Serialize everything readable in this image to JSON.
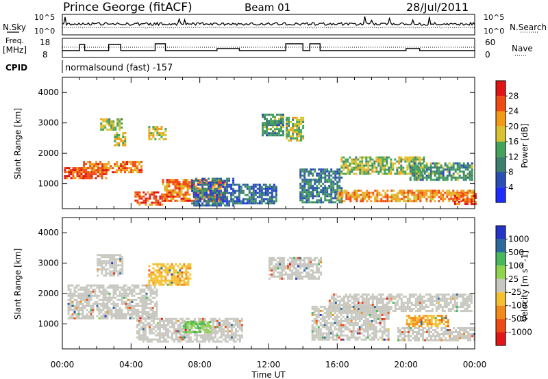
{
  "header": {
    "station": "Prince George (fitACF)",
    "beam": "Beam 01",
    "date": "28/Jul/2011"
  },
  "noise_panel": {
    "left_label": "N.Sky",
    "right_label": "N.Search",
    "ticks_left": [
      "10^5",
      "10^0"
    ],
    "ticks_right": [
      "10^5",
      "10^0"
    ]
  },
  "freq_panel": {
    "left_label_1": "Freq.",
    "left_label_2": "[MHz]",
    "right_label": "Nave",
    "ticks_left": [
      "18",
      "8"
    ],
    "ticks_right": [
      "60",
      "0"
    ]
  },
  "cpid": {
    "label": "CPID",
    "value": "normalsound (fast) -157"
  },
  "x_axis": {
    "label": "Time UT",
    "ticks": [
      "00:00",
      "04:00",
      "08:00",
      "12:00",
      "16:00",
      "20:00",
      "00:00"
    ]
  },
  "y_axis": {
    "label": "Slant Range [km]",
    "ticks": [
      "1000",
      "2000",
      "3000",
      "4000"
    ]
  },
  "power_colorbar": {
    "label": "Power [dB]",
    "ticks": [
      "4",
      "8",
      "12",
      "16",
      "20",
      "24",
      "28"
    ],
    "colors": [
      "#1f2cff",
      "#2a4fb4",
      "#3c7f6e",
      "#43a35a",
      "#d8c230",
      "#f29a18",
      "#ee4a12",
      "#e01414"
    ]
  },
  "velocity_colorbar": {
    "label": "Velocity [m s^-1]",
    "ticks": [
      "1000",
      "500",
      "100",
      "25",
      "-25",
      "-100",
      "-500",
      "-1000"
    ],
    "colors": [
      "#2433c8",
      "#2a6a9c",
      "#48b85c",
      "#8fd44c",
      "#c8c8c0",
      "#f2c030",
      "#f28a1a",
      "#ee4a14",
      "#e21616"
    ]
  },
  "chart_data": {
    "type": "heatmap",
    "x_range_hours": [
      0,
      24
    ],
    "y_range_km": [
      180,
      4500
    ],
    "power_regions": [
      {
        "t0": 0.1,
        "t1": 2.6,
        "r0": 1150,
        "r1": 1550,
        "value": 26
      },
      {
        "t0": 1.2,
        "t1": 4.6,
        "r0": 1400,
        "r1": 1750,
        "value": 24
      },
      {
        "t0": 3.0,
        "t1": 3.6,
        "r0": 2250,
        "r1": 2700,
        "value": 18
      },
      {
        "t0": 2.2,
        "t1": 3.4,
        "r0": 2800,
        "r1": 3150,
        "value": 16
      },
      {
        "t0": 4.2,
        "t1": 5.8,
        "r0": 300,
        "r1": 750,
        "value": 27
      },
      {
        "t0": 5.8,
        "t1": 9.5,
        "r0": 450,
        "r1": 1150,
        "value": 24
      },
      {
        "t0": 5.0,
        "t1": 6.0,
        "r0": 2450,
        "r1": 2900,
        "value": 18
      },
      {
        "t0": 7.5,
        "t1": 10.0,
        "r0": 300,
        "r1": 1200,
        "value": 8
      },
      {
        "t0": 10.0,
        "t1": 12.5,
        "r0": 350,
        "r1": 1000,
        "value": 8
      },
      {
        "t0": 11.6,
        "t1": 12.8,
        "r0": 2600,
        "r1": 3300,
        "value": 12
      },
      {
        "t0": 13.0,
        "t1": 14.0,
        "r0": 2400,
        "r1": 3200,
        "value": 16
      },
      {
        "t0": 13.8,
        "t1": 16.2,
        "r0": 400,
        "r1": 1500,
        "value": 10
      },
      {
        "t0": 16.2,
        "t1": 21.0,
        "r0": 1300,
        "r1": 1900,
        "value": 16
      },
      {
        "t0": 16.0,
        "t1": 24.0,
        "r0": 450,
        "r1": 800,
        "value": 22
      },
      {
        "t0": 20.2,
        "t1": 23.8,
        "r0": 1100,
        "r1": 1700,
        "value": 12
      },
      {
        "t0": 22.8,
        "t1": 24.0,
        "r0": 300,
        "r1": 700,
        "value": 26
      }
    ],
    "velocity_regions": [
      {
        "t0": 0.3,
        "t1": 5.5,
        "r0": 1200,
        "r1": 2300,
        "value": 0
      },
      {
        "t0": 2.0,
        "t1": 3.5,
        "r0": 2600,
        "r1": 3300,
        "value": 0
      },
      {
        "t0": 4.3,
        "t1": 10.5,
        "r0": 400,
        "r1": 1200,
        "value": 0
      },
      {
        "t0": 5.0,
        "t1": 7.5,
        "r0": 2300,
        "r1": 3000,
        "value": -50
      },
      {
        "t0": 7.0,
        "t1": 8.6,
        "r0": 700,
        "r1": 1100,
        "value": 60
      },
      {
        "t0": 12.0,
        "t1": 15.0,
        "r0": 2500,
        "r1": 3200,
        "value": 0
      },
      {
        "t0": 14.5,
        "t1": 19.0,
        "r0": 500,
        "r1": 1600,
        "value": 0
      },
      {
        "t0": 15.5,
        "t1": 23.8,
        "r0": 1400,
        "r1": 2000,
        "value": 0
      },
      {
        "t0": 19.5,
        "t1": 24.0,
        "r0": 450,
        "r1": 900,
        "value": 0
      },
      {
        "t0": 20.0,
        "t1": 22.5,
        "r0": 900,
        "r1": 1300,
        "value": -60
      }
    ]
  }
}
